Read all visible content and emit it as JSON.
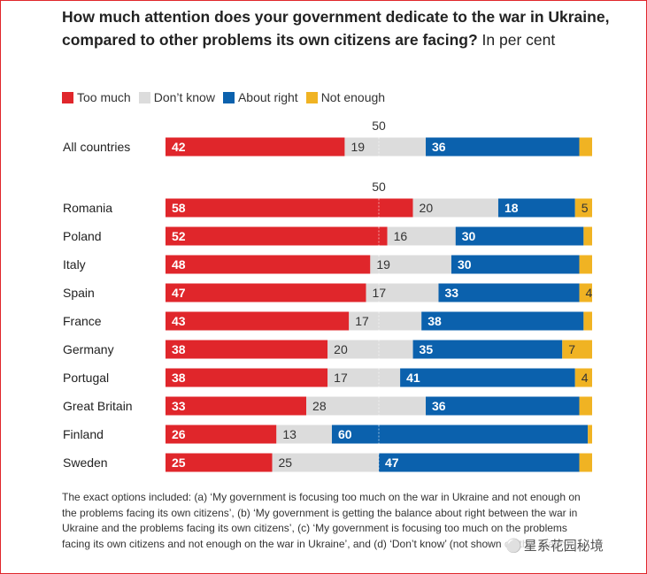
{
  "title_bold": "How much attention does your government dedicate to the war in Ukraine, compared to other problems its own citizens are facing?",
  "title_unit": "In per cent",
  "colors": {
    "too_much": "#e0262b",
    "dont_know": "#dcdcdc",
    "about_right": "#0b61ad",
    "not_enough": "#f0b323"
  },
  "chart_data": {
    "type": "bar",
    "orientation": "horizontal",
    "stacked": true,
    "xlim": [
      0,
      100
    ],
    "reference_line": 50,
    "reference_label": "50",
    "legend": [
      {
        "key": "too_much",
        "label": "Too much"
      },
      {
        "key": "dont_know",
        "label": "Don’t know"
      },
      {
        "key": "about_right",
        "label": "About right"
      },
      {
        "key": "not_enough",
        "label": "Not enough"
      }
    ],
    "groups": [
      {
        "rows": [
          {
            "category": "All countries",
            "too_much": 42,
            "dont_know": 19,
            "about_right": 36,
            "not_enough": 3
          }
        ]
      },
      {
        "rows": [
          {
            "category": "Romania",
            "too_much": 58,
            "dont_know": 20,
            "about_right": 18,
            "not_enough": 5
          },
          {
            "category": "Poland",
            "too_much": 52,
            "dont_know": 16,
            "about_right": 30,
            "not_enough": 3
          },
          {
            "category": "Italy",
            "too_much": 48,
            "dont_know": 19,
            "about_right": 30,
            "not_enough": 3
          },
          {
            "category": "Spain",
            "too_much": 47,
            "dont_know": 17,
            "about_right": 33,
            "not_enough": 4
          },
          {
            "category": "France",
            "too_much": 43,
            "dont_know": 17,
            "about_right": 38,
            "not_enough": 2
          },
          {
            "category": "Germany",
            "too_much": 38,
            "dont_know": 20,
            "about_right": 35,
            "not_enough": 7
          },
          {
            "category": "Portugal",
            "too_much": 38,
            "dont_know": 17,
            "about_right": 41,
            "not_enough": 4
          },
          {
            "category": "Great Britain",
            "too_much": 33,
            "dont_know": 28,
            "about_right": 36,
            "not_enough": 3
          },
          {
            "category": "Finland",
            "too_much": 26,
            "dont_know": 13,
            "about_right": 60,
            "not_enough": 1
          },
          {
            "category": "Sweden",
            "too_much": 25,
            "dont_know": 25,
            "about_right": 47,
            "not_enough": 4
          }
        ]
      }
    ],
    "labels_shown": {
      "Romania": [
        "too_much",
        "dont_know",
        "about_right",
        "not_enough"
      ],
      "Poland": [
        "too_much",
        "dont_know",
        "about_right"
      ],
      "Italy": [
        "too_much",
        "dont_know",
        "about_right"
      ],
      "Spain": [
        "too_much",
        "dont_know",
        "about_right",
        "not_enough"
      ],
      "France": [
        "too_much",
        "dont_know",
        "about_right"
      ],
      "Germany": [
        "too_much",
        "dont_know",
        "about_right",
        "not_enough"
      ],
      "Portugal": [
        "too_much",
        "dont_know",
        "about_right",
        "not_enough"
      ],
      "Great Britain": [
        "too_much",
        "dont_know",
        "about_right"
      ],
      "Finland": [
        "too_much",
        "dont_know",
        "about_right"
      ],
      "Sweden": [
        "too_much",
        "dont_know",
        "about_right"
      ],
      "All countries": [
        "too_much",
        "dont_know",
        "about_right"
      ]
    }
  },
  "footnote": "The exact options included: (a) ‘My government is focusing too much on the war in Ukraine and not enough on the problems facing its own citizens’, (b) ‘My government is getting the balance about right between the war in Ukraine and the problems facing its own citizens’, (c) ‘My government is focusing too much on the problems facing its own citizens and not enough on the war in Ukraine’, and (d) ‘Don’t know’ (not shown on this graph).",
  "watermark": "星系花园秘境"
}
